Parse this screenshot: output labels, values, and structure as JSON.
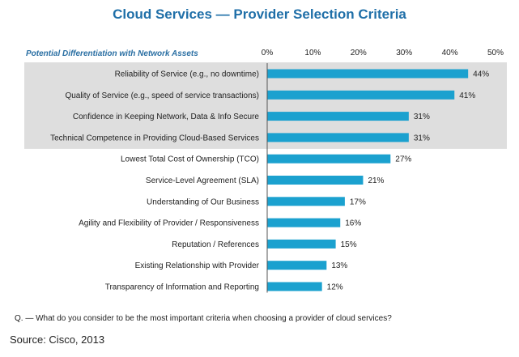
{
  "chart_data": {
    "type": "bar",
    "orientation": "horizontal",
    "title": "Cloud Services — Provider Selection Criteria",
    "subtitle": "Potential Differentiation with Network Assets",
    "categories": [
      "Reliability of Service (e.g., no downtime)",
      "Quality of Service (e.g., speed of service transactions)",
      "Confidence in Keeping Network, Data & Info Secure",
      "Technical Competence in Providing Cloud-Based Services",
      "Lowest Total Cost of Ownership (TCO)",
      "Service-Level Agreement (SLA)",
      "Understanding of Our Business",
      "Agility and Flexibility of Provider / Responsiveness",
      "Reputation / References",
      "Existing Relationship with Provider",
      "Transparency of Information and Reporting"
    ],
    "values": [
      44,
      41,
      31,
      31,
      27,
      21,
      17,
      16,
      15,
      13,
      12
    ],
    "value_labels": [
      "44%",
      "41%",
      "31%",
      "31%",
      "27%",
      "21%",
      "17%",
      "16%",
      "15%",
      "13%",
      "12%"
    ],
    "xticks": [
      "0%",
      "10%",
      "20%",
      "30%",
      "40%",
      "50%"
    ],
    "xlim": [
      0,
      50
    ],
    "highlighted_count": 4,
    "bar_color": "#1ba1cf",
    "highlight_color": "#dedede",
    "title_color": "#1f6fa8",
    "note": "Q. — What do you consider to be the most important criteria when choosing a provider of cloud services?",
    "source": "Source: Cisco, 2013"
  }
}
